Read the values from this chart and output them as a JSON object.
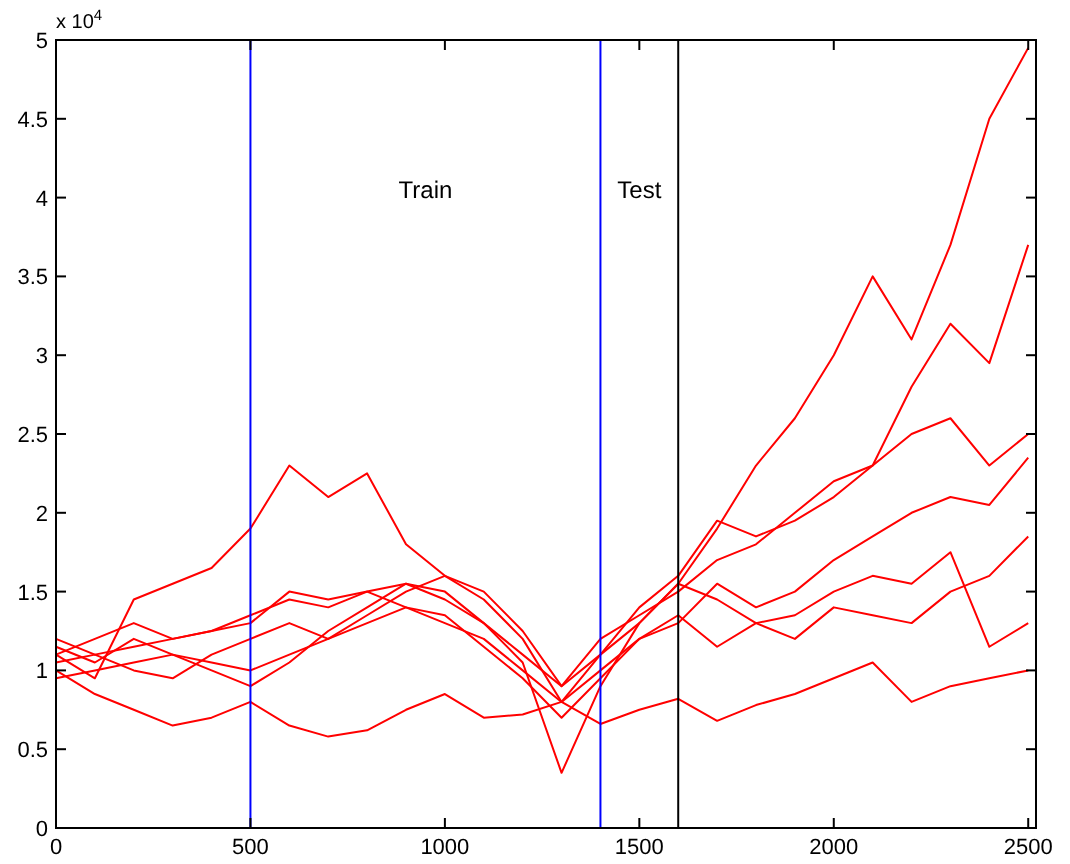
{
  "chart_data": {
    "type": "line",
    "x": [
      0,
      100,
      200,
      300,
      400,
      500,
      600,
      700,
      800,
      900,
      1000,
      1100,
      1200,
      1300,
      1400,
      1500,
      1600,
      1700,
      1800,
      1900,
      2000,
      2100,
      2200,
      2300,
      2400,
      2500
    ],
    "series": [
      {
        "color": "#ff0000",
        "values": [
          1.0,
          0.85,
          0.75,
          0.65,
          0.7,
          0.8,
          0.65,
          0.58,
          0.62,
          0.75,
          0.85,
          0.7,
          0.72,
          0.8,
          0.66,
          0.75,
          0.82,
          0.68,
          0.78,
          0.85,
          0.95,
          1.05,
          0.8,
          0.9,
          0.95,
          1.0
        ]
      },
      {
        "color": "#ff0000",
        "values": [
          1.1,
          0.95,
          1.45,
          1.55,
          1.65,
          1.9,
          2.3,
          2.1,
          2.25,
          1.8,
          1.6,
          1.5,
          1.25,
          0.9,
          1.1,
          1.3,
          1.55,
          1.9,
          2.3,
          2.6,
          3.0,
          3.5,
          3.1,
          3.7,
          4.5,
          4.95
        ]
      },
      {
        "color": "#ff0000",
        "values": [
          1.2,
          1.1,
          1.15,
          1.2,
          1.25,
          1.3,
          1.5,
          1.45,
          1.5,
          1.4,
          1.3,
          1.2,
          1.0,
          0.8,
          1.1,
          1.4,
          1.6,
          1.95,
          1.85,
          1.95,
          2.1,
          2.3,
          2.8,
          3.2,
          2.95,
          3.7
        ]
      },
      {
        "color": "#ff0000",
        "values": [
          1.1,
          1.2,
          1.3,
          1.2,
          1.25,
          1.35,
          1.45,
          1.4,
          1.5,
          1.55,
          1.45,
          1.3,
          1.1,
          0.9,
          1.2,
          1.35,
          1.5,
          1.7,
          1.8,
          2.0,
          2.2,
          2.3,
          2.5,
          2.6,
          2.3,
          2.5
        ]
      },
      {
        "color": "#ff0000",
        "values": [
          0.95,
          1.0,
          1.05,
          1.1,
          1.05,
          1.0,
          1.1,
          1.2,
          1.3,
          1.4,
          1.35,
          1.15,
          0.95,
          0.7,
          0.95,
          1.2,
          1.3,
          1.55,
          1.4,
          1.5,
          1.7,
          1.85,
          2.0,
          2.1,
          2.05,
          2.35
        ]
      },
      {
        "color": "#ff0000",
        "values": [
          1.05,
          1.1,
          1.0,
          0.95,
          1.1,
          1.2,
          1.3,
          1.2,
          1.35,
          1.5,
          1.6,
          1.45,
          1.2,
          0.8,
          1.0,
          1.2,
          1.35,
          1.15,
          1.3,
          1.2,
          1.4,
          1.35,
          1.3,
          1.5,
          1.6,
          1.85
        ]
      },
      {
        "color": "#ff0000",
        "values": [
          1.15,
          1.05,
          1.2,
          1.1,
          1.0,
          0.9,
          1.05,
          1.25,
          1.4,
          1.55,
          1.5,
          1.3,
          1.05,
          0.35,
          0.9,
          1.3,
          1.55,
          1.45,
          1.3,
          1.35,
          1.5,
          1.6,
          1.55,
          1.75,
          1.15,
          1.3
        ]
      }
    ],
    "xlim": [
      0,
      2520
    ],
    "xticks": [
      0,
      500,
      1000,
      1500,
      2000,
      2500
    ],
    "ylim": [
      0,
      5
    ],
    "yticks": [
      0,
      0.5,
      1,
      1.5,
      2,
      2.5,
      3,
      3.5,
      4,
      4.5,
      5
    ],
    "ref_lines": [
      {
        "axis": "x",
        "value": 500,
        "color": "#0000ff"
      },
      {
        "axis": "x",
        "value": 1400,
        "color": "#0000ff"
      },
      {
        "axis": "x",
        "value": 1600,
        "color": "#000000"
      }
    ],
    "annotations": [
      "x 10$^{4}$",
      "Train",
      "Test"
    ]
  }
}
